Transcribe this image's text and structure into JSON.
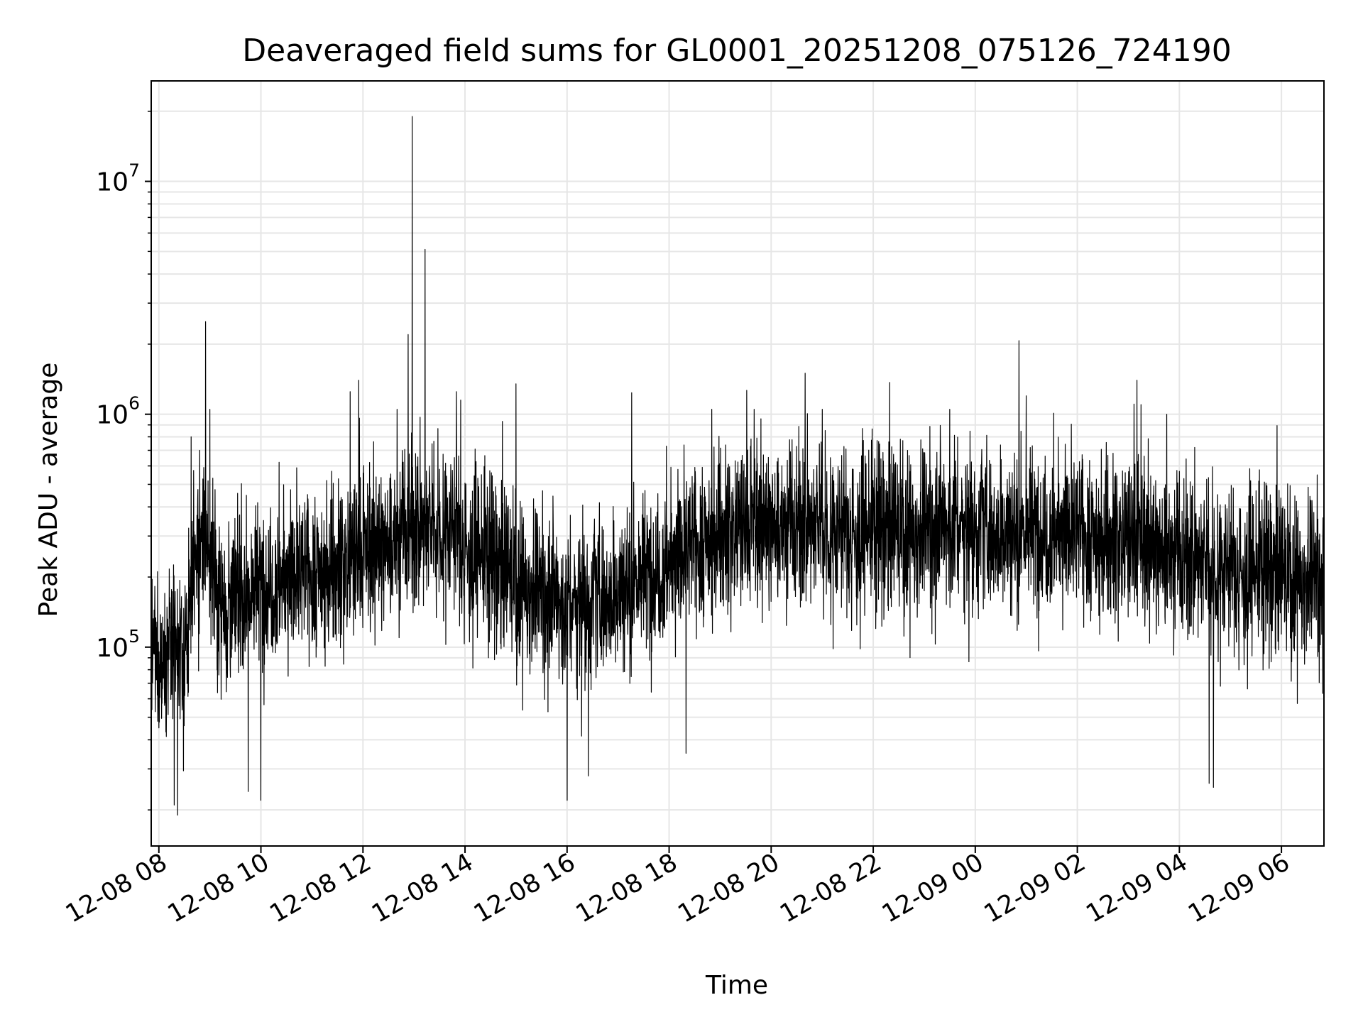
{
  "chart_data": {
    "type": "line",
    "title": "Deaveraged field sums for GL0001_20251208_075126_724190",
    "xlabel": "Time",
    "ylabel": "Peak ADU - average",
    "yscale": "log",
    "grid": true,
    "line_color": "#000000",
    "grid_color": "#e6e6e6",
    "xlim": [
      "2025-12-08 07:51",
      "2025-12-09 06:50"
    ],
    "ylim": [
      14000,
      27000000
    ],
    "x_ticks": [
      {
        "t": "2025-12-08 08:00",
        "label": "12-08 08"
      },
      {
        "t": "2025-12-08 10:00",
        "label": "12-08 10"
      },
      {
        "t": "2025-12-08 12:00",
        "label": "12-08 12"
      },
      {
        "t": "2025-12-08 14:00",
        "label": "12-08 14"
      },
      {
        "t": "2025-12-08 16:00",
        "label": "12-08 16"
      },
      {
        "t": "2025-12-08 18:00",
        "label": "12-08 18"
      },
      {
        "t": "2025-12-08 20:00",
        "label": "12-08 20"
      },
      {
        "t": "2025-12-08 22:00",
        "label": "12-08 22"
      },
      {
        "t": "2025-12-09 00:00",
        "label": "12-09 00"
      },
      {
        "t": "2025-12-09 02:00",
        "label": "12-09 02"
      },
      {
        "t": "2025-12-09 04:00",
        "label": "12-09 04"
      },
      {
        "t": "2025-12-09 06:00",
        "label": "12-09 06"
      }
    ],
    "y_ticks": [
      {
        "value": 100000,
        "base": "10",
        "exp": "5"
      },
      {
        "value": 1000000,
        "base": "10",
        "exp": "6"
      },
      {
        "value": 10000000,
        "base": "10",
        "exp": "7"
      }
    ],
    "baseline": [
      [
        "2025-12-08 07:51",
        85000
      ],
      [
        "2025-12-08 08:15",
        105000
      ],
      [
        "2025-12-08 08:30",
        88000
      ],
      [
        "2025-12-08 08:40",
        200000
      ],
      [
        "2025-12-08 08:55",
        300000
      ],
      [
        "2025-12-08 09:10",
        165000
      ],
      [
        "2025-12-08 09:30",
        160000
      ],
      [
        "2025-12-08 10:00",
        185000
      ],
      [
        "2025-12-08 11:00",
        210000
      ],
      [
        "2025-12-08 12:00",
        250000
      ],
      [
        "2025-12-08 13:00",
        310000
      ],
      [
        "2025-12-08 13:40",
        340000
      ],
      [
        "2025-12-08 14:00",
        280000
      ],
      [
        "2025-12-08 15:00",
        200000
      ],
      [
        "2025-12-08 16:00",
        150000
      ],
      [
        "2025-12-08 17:00",
        180000
      ],
      [
        "2025-12-08 18:00",
        230000
      ],
      [
        "2025-12-08 19:00",
        320000
      ],
      [
        "2025-12-08 20:00",
        330000
      ],
      [
        "2025-12-08 22:00",
        320000
      ],
      [
        "2025-12-09 00:00",
        330000
      ],
      [
        "2025-12-09 02:00",
        310000
      ],
      [
        "2025-12-09 03:00",
        290000
      ],
      [
        "2025-12-09 04:00",
        240000
      ],
      [
        "2025-12-09 05:00",
        220000
      ],
      [
        "2025-12-09 06:50",
        200000
      ]
    ],
    "spikes": [
      [
        "2025-12-08 08:38",
        800000
      ],
      [
        "2025-12-08 08:48",
        700000
      ],
      [
        "2025-12-08 08:55",
        2500000
      ],
      [
        "2025-12-08 09:00",
        1050000
      ],
      [
        "2025-12-08 11:45",
        1250000
      ],
      [
        "2025-12-08 11:55",
        1400000
      ],
      [
        "2025-12-08 12:40",
        1050000
      ],
      [
        "2025-12-08 12:53",
        2200000
      ],
      [
        "2025-12-08 12:58",
        19000000
      ],
      [
        "2025-12-08 13:13",
        5100000
      ],
      [
        "2025-12-08 13:50",
        1250000
      ],
      [
        "2025-12-08 13:55",
        1150000
      ],
      [
        "2025-12-08 15:00",
        1350000
      ],
      [
        "2025-12-08 16:00",
        620000
      ],
      [
        "2025-12-08 18:50",
        1050000
      ],
      [
        "2025-12-08 19:40",
        1050000
      ],
      [
        "2025-12-08 20:40",
        1500000
      ],
      [
        "2025-12-08 21:00",
        1050000
      ],
      [
        "2025-12-08 23:30",
        1050000
      ],
      [
        "2025-12-09 01:00",
        1200000
      ],
      [
        "2025-12-09 03:10",
        1400000
      ],
      [
        "2025-12-09 03:15",
        1100000
      ],
      [
        "2025-12-09 03:45",
        1000000
      ]
    ],
    "dips": [
      [
        "2025-12-08 08:22",
        19000
      ],
      [
        "2025-12-08 08:18",
        21000
      ],
      [
        "2025-12-08 09:45",
        24000
      ],
      [
        "2025-12-08 10:00",
        22000
      ],
      [
        "2025-12-08 16:00",
        22000
      ],
      [
        "2025-12-08 16:25",
        28000
      ],
      [
        "2025-12-08 18:20",
        35000
      ],
      [
        "2025-12-09 04:35",
        26000
      ],
      [
        "2025-12-09 04:40",
        25000
      ]
    ]
  }
}
